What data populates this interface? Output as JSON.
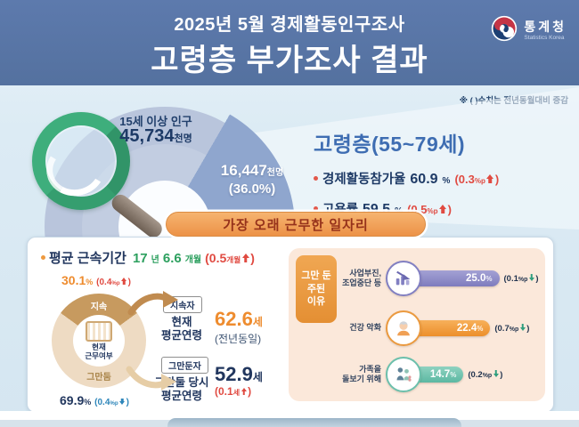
{
  "header": {
    "subtitle": "2025년 5월 경제활동인구조사",
    "title": "고령층 부가조사 결과",
    "agency": "통계청",
    "agency_en": "Statistics Korea"
  },
  "note": "※ ( )수치는 전년동월대비 증감",
  "population_donut": {
    "total_label": "15세 이상 인구",
    "total_value": "45,734",
    "total_unit": "천명",
    "highlight_value": "16,447",
    "highlight_unit": "천명",
    "highlight_share": "(36.0%)"
  },
  "elderly_summary": {
    "title": "고령층(55~79세)",
    "items": [
      {
        "label": "경제활동참가율",
        "value": "60.9",
        "unit": "%",
        "change_open": "(0.3",
        "change_unit": "%p",
        "change_close": ")",
        "direction": "up"
      },
      {
        "label": "고용률",
        "value": "59.5",
        "unit": "%",
        "change_open": "(0.5",
        "change_unit": "%p",
        "change_close": ")",
        "direction": "up"
      }
    ]
  },
  "section_banner": "가장 오래 근무한 일자리",
  "tenure": {
    "label": "평균 근속기간",
    "years_value": "17",
    "years_unit": "년",
    "months_value": "6.6",
    "months_unit": "개월",
    "change_open": "(0.5",
    "change_unit": "개월",
    "change_close": ")",
    "direction": "up"
  },
  "work_status_donut": {
    "center_line1": "현재",
    "center_line2": "근무여부",
    "segment_continue": "지속",
    "segment_quit": "그만둠",
    "continue_value": "30.1",
    "continue_unit": "%",
    "continue_change_open": "(0.4",
    "continue_change_unit": "%p",
    "continue_change_close": ")",
    "continue_direction": "up",
    "quit_value": "69.9",
    "quit_unit": "%",
    "quit_change_open": "(0.4",
    "quit_change_unit": "%p",
    "quit_change_close": ")",
    "quit_direction": "down"
  },
  "continuer": {
    "tag": "지속자",
    "label_line1": "현재",
    "label_line2": "평균연령",
    "value": "62.6",
    "unit": "세",
    "change": "(전년동일)"
  },
  "quitter": {
    "tag": "그만둔자",
    "label_line1": "그만둘 당시",
    "label_line2": "평균연령",
    "value": "52.9",
    "unit": "세",
    "change_open": "(0.1",
    "change_unit": "세",
    "change_close": ")",
    "direction": "up"
  },
  "quit_reasons": {
    "tag_line1": "그만 둔",
    "tag_line2": "주된",
    "tag_line3": "이유",
    "rows": [
      {
        "label_line1": "사업부진,",
        "label_line2": "조업중단 등",
        "value": 25.0,
        "value_text": "25.0",
        "unit": "%",
        "change_open": "(0.1",
        "change_unit": "%p",
        "change_close": ")",
        "direction": "down",
        "icon": "declining-chart-icon"
      },
      {
        "label_line1": "건강 악화",
        "label_line2": "",
        "value": 22.4,
        "value_text": "22.4",
        "unit": "%",
        "change_open": "(0.7",
        "change_unit": "%p",
        "change_close": ")",
        "direction": "down",
        "icon": "elderly-person-icon"
      },
      {
        "label_line1": "가족을",
        "label_line2": "돌보기 위해",
        "value": 14.7,
        "value_text": "14.7",
        "unit": "%",
        "change_open": "(0.2",
        "change_unit": "%p",
        "change_close": ")",
        "direction": "down",
        "icon": "family-icon"
      }
    ]
  },
  "chart_data": [
    {
      "type": "pie",
      "title": "15세 이상 인구",
      "unit": "천명",
      "total": 45734,
      "slices": [
        {
          "label": "고령층(55~79세)",
          "value": 16447,
          "share_pct": 36.0
        }
      ]
    },
    {
      "type": "pie",
      "title": "현재 근무여부",
      "unit": "%",
      "slices": [
        {
          "label": "지속",
          "value": 30.1,
          "change_pp": 0.4
        },
        {
          "label": "그만둠",
          "value": 69.9,
          "change_pp": -0.4
        }
      ]
    },
    {
      "type": "bar",
      "title": "그만 둔 주된 이유",
      "unit": "%",
      "categories": [
        "사업부진, 조업중단 등",
        "건강 악화",
        "가족을 돌보기 위해"
      ],
      "values": [
        25.0,
        22.4,
        14.7
      ],
      "changes_pp": [
        -0.1,
        -0.7,
        -0.2
      ],
      "xlim": [
        0,
        30
      ],
      "legend_position": "none",
      "grid": false
    }
  ],
  "key_indicators": {
    "economic_activity_rate": {
      "value": 60.9,
      "unit": "%",
      "change_pp": 0.3
    },
    "employment_rate": {
      "value": 59.5,
      "unit": "%",
      "change_pp": 0.5
    },
    "avg_tenure": {
      "years": 17,
      "months": 6.6,
      "change_months": 0.5
    },
    "continuer_avg_age": {
      "value": 62.6,
      "unit": "세",
      "change": "전년동일"
    },
    "quitter_avg_age_at_quit": {
      "value": 52.9,
      "unit": "세",
      "change_age": 0.1
    }
  }
}
